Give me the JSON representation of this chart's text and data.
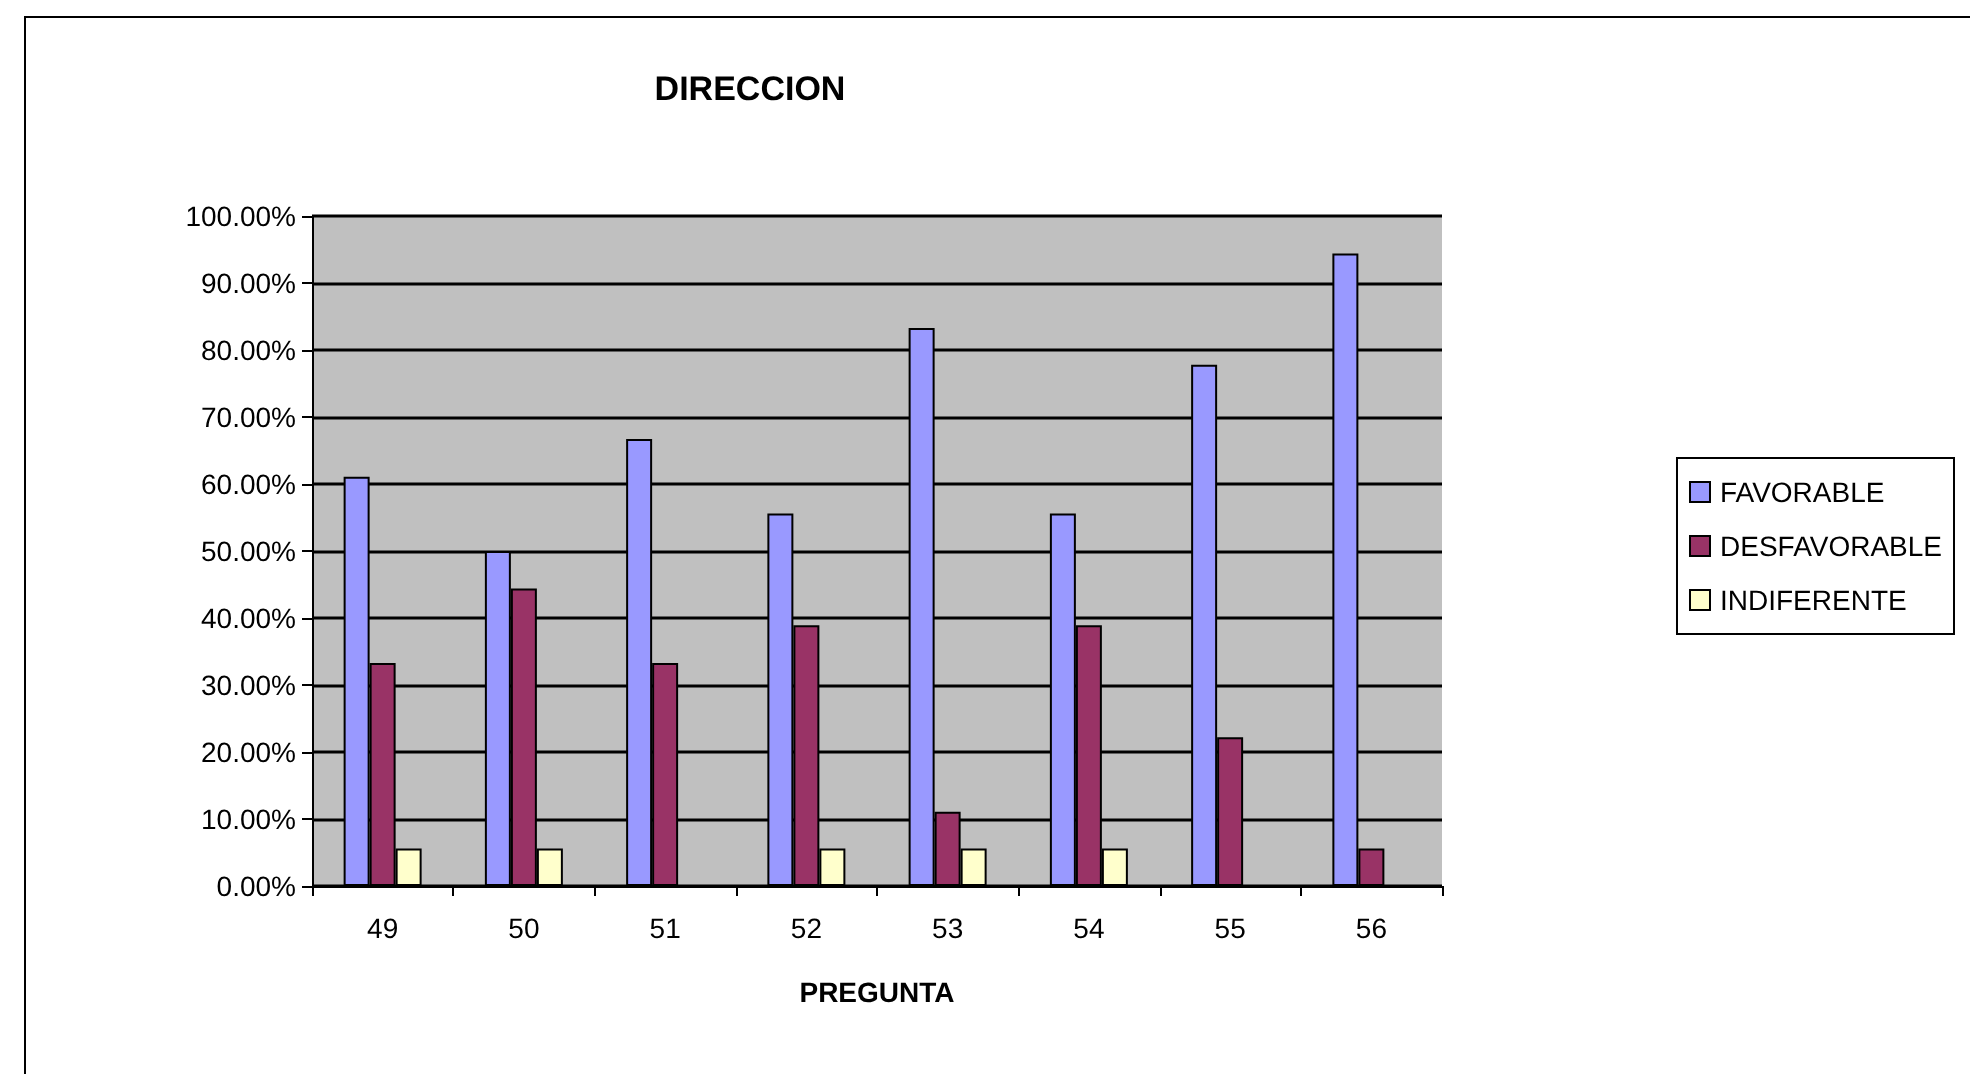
{
  "chart_data": {
    "type": "bar",
    "title": "DIRECCION",
    "xlabel": "PREGUNTA",
    "categories": [
      "49",
      "50",
      "51",
      "52",
      "53",
      "54",
      "55",
      "56"
    ],
    "series": [
      {
        "name": "FAVORABLE",
        "color": "#9999ff",
        "values": [
          61.1,
          50,
          66.7,
          55.6,
          83.3,
          55.6,
          77.8,
          94.4
        ]
      },
      {
        "name": "DESFAVORABLE",
        "color": "#993366",
        "values": [
          33.3,
          44.4,
          33.3,
          38.9,
          11.1,
          38.9,
          22.2,
          5.6
        ]
      },
      {
        "name": "INDIFERENTE",
        "color": "#ffffcc",
        "values": [
          5.6,
          5.6,
          null,
          5.6,
          5.6,
          5.6,
          null,
          null
        ]
      }
    ],
    "ylim": [
      0,
      100
    ],
    "yticks": [
      {
        "value": 0,
        "label": "0.00%"
      },
      {
        "value": 10,
        "label": "10.00%"
      },
      {
        "value": 20,
        "label": "20.00%"
      },
      {
        "value": 30,
        "label": "30.00%"
      },
      {
        "value": 40,
        "label": "40.00%"
      },
      {
        "value": 50,
        "label": "50.00%"
      },
      {
        "value": 60,
        "label": "60.00%"
      },
      {
        "value": 70,
        "label": "70.00%"
      },
      {
        "value": 80,
        "label": "80.00%"
      },
      {
        "value": 90,
        "label": "90.00%"
      },
      {
        "value": 100,
        "label": "100.00%"
      }
    ],
    "grid": "y",
    "legend": "right"
  }
}
